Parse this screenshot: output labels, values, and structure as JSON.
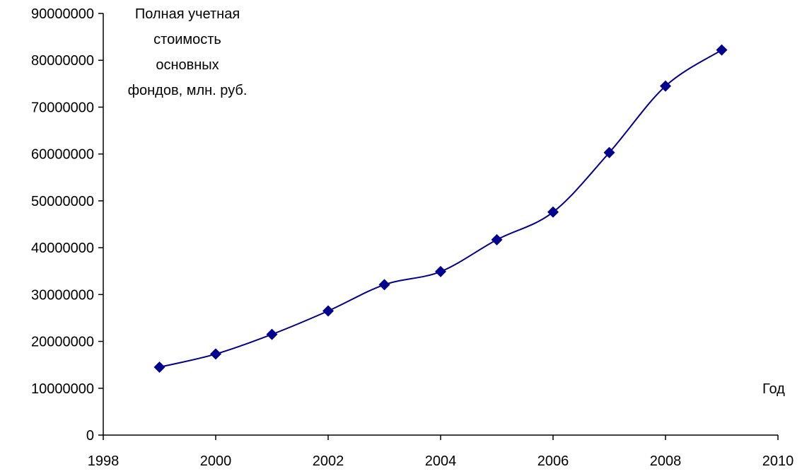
{
  "chart_data": {
    "type": "line",
    "title": "",
    "ylabel_lines": [
      "Полная учетная",
      "стоимость",
      "основных",
      "фондов, млн. руб."
    ],
    "xlabel": "Год",
    "xlim": [
      1998,
      2010
    ],
    "ylim": [
      0,
      90000000
    ],
    "x_ticks": [
      "1998",
      "2000",
      "2002",
      "2004",
      "2006",
      "2008",
      "2010"
    ],
    "y_ticks": [
      "0",
      "10000000",
      "20000000",
      "30000000",
      "40000000",
      "50000000",
      "60000000",
      "70000000",
      "80000000",
      "90000000"
    ],
    "grid": false,
    "legend": "none",
    "series": [
      {
        "x": [
          1999,
          2000,
          2001,
          2002,
          2003,
          2004,
          2005,
          2006,
          2007,
          2008,
          2009
        ],
        "values": [
          14500000,
          17300000,
          21500000,
          26500000,
          32100000,
          34900000,
          41700000,
          47600000,
          60300000,
          74500000,
          82200000
        ],
        "color": "#00008b"
      }
    ]
  }
}
